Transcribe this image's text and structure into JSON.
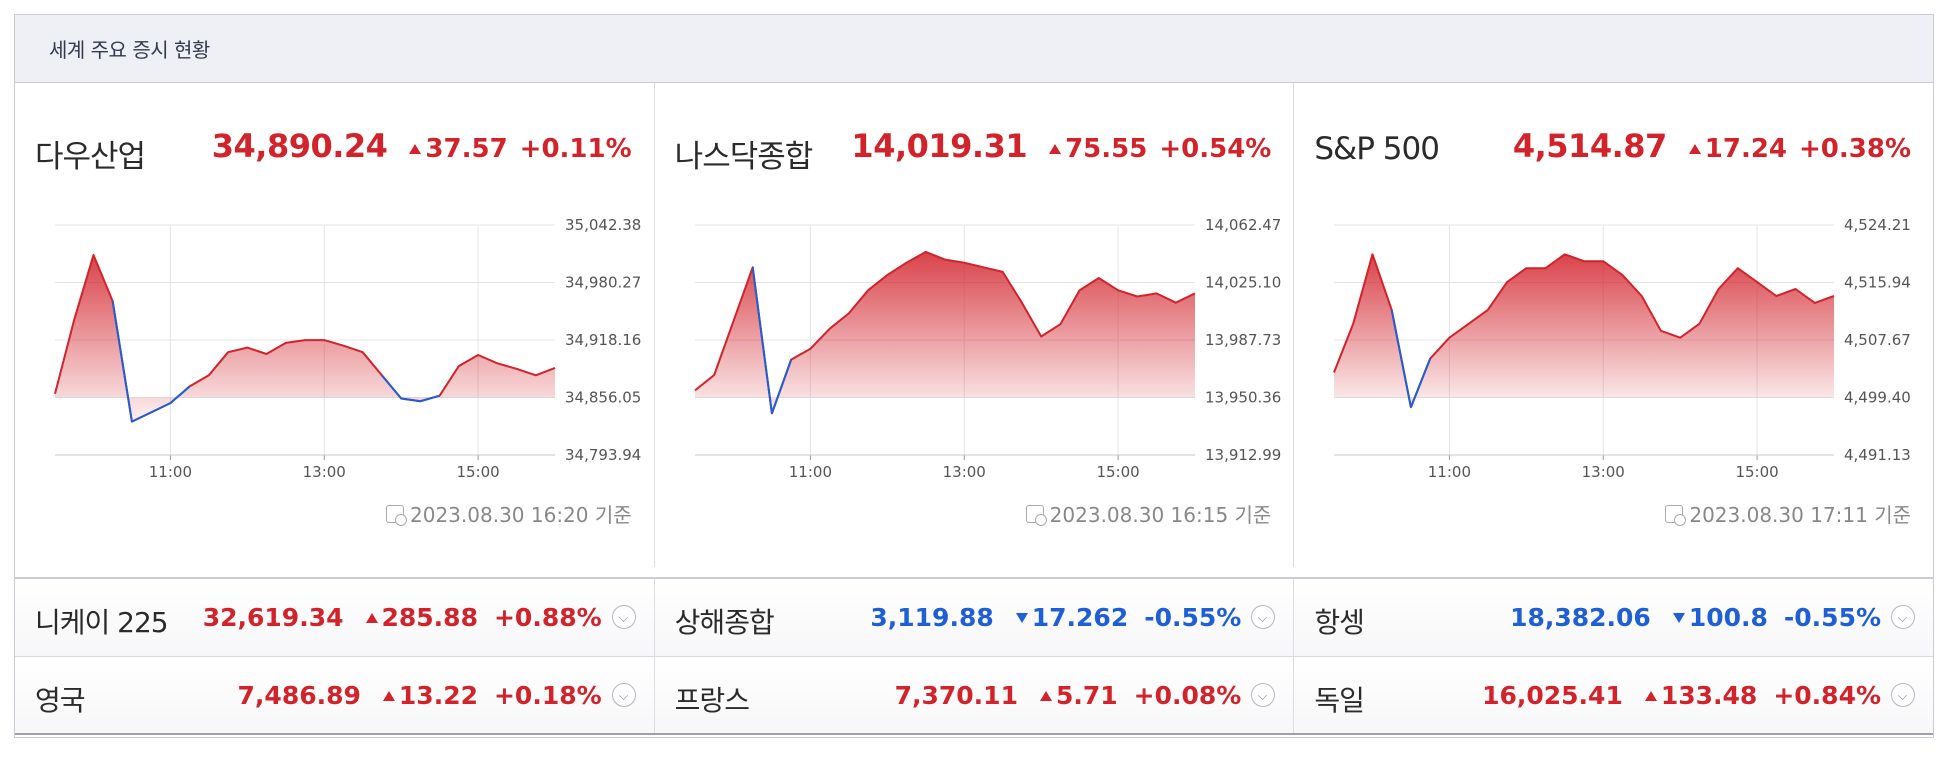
{
  "header": {
    "title": "세계 주요 증시 현황"
  },
  "colors": {
    "up": "#d2222a",
    "down": "#1f5fd6",
    "grid": "#e3e4ea",
    "baseline": "#c8c9d0"
  },
  "icons": {
    "timestamp": "clock-calendar-icon",
    "expand": "chevron-down-icon"
  },
  "panels": [
    {
      "name": "다우산업",
      "value": "34,890.24",
      "change": "37.57",
      "percent": "+0.11%",
      "direction": "up",
      "timestamp": "2023.08.30 16:20 기준"
    },
    {
      "name": "나스닥종합",
      "value": "14,019.31",
      "change": "75.55",
      "percent": "+0.54%",
      "direction": "up",
      "timestamp": "2023.08.30 16:15 기준"
    },
    {
      "name": "S&P 500",
      "value": "4,514.87",
      "change": "17.24",
      "percent": "+0.38%",
      "direction": "up",
      "timestamp": "2023.08.30 17:11 기준"
    }
  ],
  "chart_data": [
    {
      "type": "area",
      "series_name": "다우산업",
      "x_labels": [
        "11:00",
        "13:00",
        "15:00"
      ],
      "x_range": [
        "09:30",
        "16:00"
      ],
      "y_ticks": [
        "35,042.38",
        "34,980.27",
        "34,918.16",
        "34,856.05",
        "34,793.94"
      ],
      "ylim": [
        34793.94,
        35042.38
      ],
      "reference": 34856.05,
      "x": [
        "09:30",
        "09:45",
        "10:00",
        "10:15",
        "10:30",
        "10:45",
        "11:00",
        "11:15",
        "11:30",
        "11:45",
        "12:00",
        "12:15",
        "12:30",
        "12:45",
        "13:00",
        "13:15",
        "13:30",
        "13:45",
        "14:00",
        "14:15",
        "14:30",
        "14:45",
        "15:00",
        "15:15",
        "15:30",
        "15:45",
        "16:00"
      ],
      "y": [
        34860,
        34940,
        35010,
        34960,
        34830,
        34840,
        34850,
        34868,
        34880,
        34905,
        34910,
        34903,
        34915,
        34918,
        34918,
        34912,
        34905,
        34880,
        34855,
        34852,
        34858,
        34890,
        34902,
        34893,
        34887,
        34880,
        34888
      ]
    },
    {
      "type": "area",
      "series_name": "나스닥종합",
      "x_labels": [
        "11:00",
        "13:00",
        "15:00"
      ],
      "x_range": [
        "09:30",
        "16:00"
      ],
      "y_ticks": [
        "14,062.47",
        "14,025.10",
        "13,987.73",
        "13,950.36",
        "13,912.99"
      ],
      "ylim": [
        13912.99,
        14062.47
      ],
      "reference": 13950.36,
      "x": [
        "09:30",
        "09:45",
        "10:00",
        "10:15",
        "10:30",
        "10:45",
        "11:00",
        "11:15",
        "11:30",
        "11:45",
        "12:00",
        "12:15",
        "12:30",
        "12:45",
        "13:00",
        "13:15",
        "13:30",
        "13:45",
        "14:00",
        "14:15",
        "14:30",
        "14:45",
        "15:00",
        "15:15",
        "15:30",
        "15:45",
        "16:00"
      ],
      "y": [
        13955,
        13965,
        14000,
        14035,
        13940,
        13975,
        13982,
        13995,
        14005,
        14020,
        14030,
        14038,
        14045,
        14040,
        14038,
        14035,
        14032,
        14012,
        13990,
        13998,
        14020,
        14028,
        14020,
        14016,
        14018,
        14012,
        14018
      ]
    },
    {
      "type": "area",
      "series_name": "S&P 500",
      "x_labels": [
        "11:00",
        "13:00",
        "15:00"
      ],
      "x_range": [
        "09:30",
        "16:00"
      ],
      "y_ticks": [
        "4,524.21",
        "4,515.94",
        "4,507.67",
        "4,499.40",
        "4,491.13"
      ],
      "ylim": [
        4491.13,
        4524.21
      ],
      "reference": 4499.4,
      "x": [
        "09:30",
        "09:45",
        "10:00",
        "10:15",
        "10:30",
        "10:45",
        "11:00",
        "11:15",
        "11:30",
        "11:45",
        "12:00",
        "12:15",
        "12:30",
        "12:45",
        "13:00",
        "13:15",
        "13:30",
        "13:45",
        "14:00",
        "14:15",
        "14:30",
        "14:45",
        "15:00",
        "15:15",
        "15:30",
        "15:45",
        "16:00"
      ],
      "y": [
        4503,
        4510,
        4520,
        4512,
        4498,
        4505,
        4508,
        4510,
        4512,
        4516,
        4518,
        4518,
        4520,
        4519,
        4519,
        4517,
        4514,
        4509,
        4508,
        4510,
        4515,
        4518,
        4516,
        4514,
        4515,
        4513,
        4514
      ]
    }
  ],
  "rows": [
    [
      {
        "name": "니케이 225",
        "value": "32,619.34",
        "change": "285.88",
        "percent": "+0.88%",
        "direction": "up"
      },
      {
        "name": "상해종합",
        "value": "3,119.88",
        "change": "17.262",
        "percent": "-0.55%",
        "direction": "down"
      },
      {
        "name": "항셍",
        "value": "18,382.06",
        "change": "100.8",
        "percent": "-0.55%",
        "direction": "down"
      }
    ],
    [
      {
        "name": "영국",
        "value": "7,486.89",
        "change": "13.22",
        "percent": "+0.18%",
        "direction": "up"
      },
      {
        "name": "프랑스",
        "value": "7,370.11",
        "change": "5.71",
        "percent": "+0.08%",
        "direction": "up"
      },
      {
        "name": "독일",
        "value": "16,025.41",
        "change": "133.48",
        "percent": "+0.84%",
        "direction": "up"
      }
    ]
  ]
}
